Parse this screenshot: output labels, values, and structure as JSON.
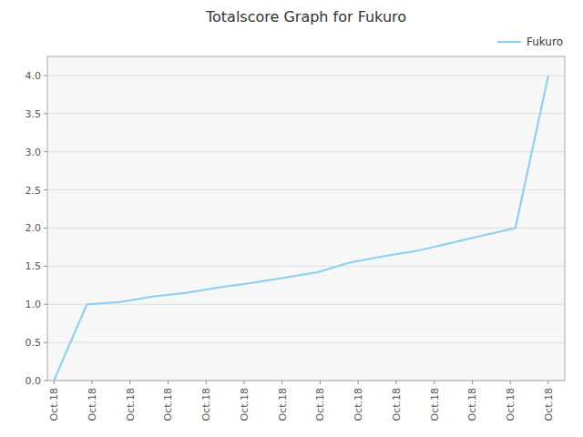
{
  "chart_data": {
    "type": "line",
    "title": "Totalscore Graph for Fukuro",
    "x": [
      0,
      1,
      2,
      3,
      4,
      5,
      6,
      7,
      8,
      9,
      10,
      11,
      12,
      13,
      14,
      15
    ],
    "series": [
      {
        "name": "Fukuro",
        "color": "#89CFF0",
        "values": [
          0.0,
          1.0,
          1.03,
          1.1,
          1.15,
          1.22,
          1.28,
          1.35,
          1.42,
          1.55,
          1.63,
          1.7,
          1.8,
          1.9,
          2.0,
          4.0
        ]
      }
    ],
    "xlim": [
      -0.2,
      15.5
    ],
    "xticks": [
      {
        "value": 0,
        "label": "Oct.18"
      },
      {
        "value": 1.1538461538461537,
        "label": "Oct.18"
      },
      {
        "value": 2.3076923076923075,
        "label": "Oct.18"
      },
      {
        "value": 3.4615384615384617,
        "label": "Oct.18"
      },
      {
        "value": 4.615384615384615,
        "label": "Oct.18"
      },
      {
        "value": 5.769230769230769,
        "label": "Oct.18"
      },
      {
        "value": 6.923076923076923,
        "label": "Oct.18"
      },
      {
        "value": 8.076923076923077,
        "label": "Oct.18"
      },
      {
        "value": 9.23076923076923,
        "label": "Oct.18"
      },
      {
        "value": 10.384615384615385,
        "label": "Oct.18"
      },
      {
        "value": 11.538461538461538,
        "label": "Oct.18"
      },
      {
        "value": 12.692307692307692,
        "label": "Oct.18"
      },
      {
        "value": 13.846153846153847,
        "label": "Oct.18"
      },
      {
        "value": 15,
        "label": "Oct.18"
      }
    ],
    "ylim": [
      0.0,
      4.25
    ],
    "yticks": [
      {
        "value": 0.0,
        "label": "0.0"
      },
      0.5,
      {
        "value": 1.0,
        "label": "1.0"
      },
      1.5,
      {
        "value": 2.0,
        "label": "2.0"
      },
      2.5,
      {
        "value": 3.0,
        "label": "3.0"
      },
      3.5,
      {
        "value": 4.0,
        "label": "4.0"
      }
    ],
    "grid": true,
    "legend": "upper right"
  }
}
